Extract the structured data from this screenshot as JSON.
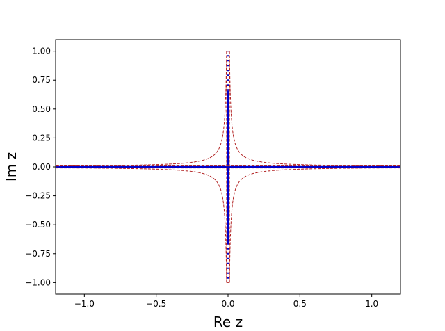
{
  "chart_data": {
    "type": "line",
    "xlabel": "Re z",
    "ylabel": "Im z",
    "xlim": [
      -1.2,
      1.2
    ],
    "ylim": [
      -1.1,
      1.1
    ],
    "x_ticks": [
      -1.0,
      -0.5,
      0.0,
      0.5,
      1.0
    ],
    "x_tick_labels": [
      "−1.0",
      "−0.5",
      "0.0",
      "0.5",
      "1.0"
    ],
    "y_ticks": [
      1.0,
      0.75,
      0.5,
      0.25,
      0.0,
      -0.25,
      -0.5,
      -0.75,
      -1.0
    ],
    "y_tick_labels": [
      "1.00",
      "0.75",
      "0.50",
      "0.25",
      "0.00",
      "−0.25",
      "−0.50",
      "−0.75",
      "−1.00"
    ],
    "grid": false,
    "series": [
      {
        "style": "solid",
        "color": "#0000cc",
        "segments": [
          [
            [
              -1.2,
              0.0
            ],
            [
              1.2,
              0.0
            ]
          ],
          [
            [
              0.0,
              -0.66
            ],
            [
              0.0,
              0.66
            ]
          ]
        ]
      },
      {
        "style": "dotted",
        "color": "#0000cc",
        "segments": [
          [
            [
              0.0,
              0.66
            ],
            [
              0.0,
              1.0
            ]
          ],
          [
            [
              0.0,
              -0.66
            ],
            [
              0.0,
              -1.0
            ]
          ]
        ]
      },
      {
        "style": "dashed",
        "color": "#b22222",
        "curve": "hyperbola",
        "k": 0.01,
        "ymax": 1.0,
        "box_halfwidth": 0.01
      }
    ]
  }
}
